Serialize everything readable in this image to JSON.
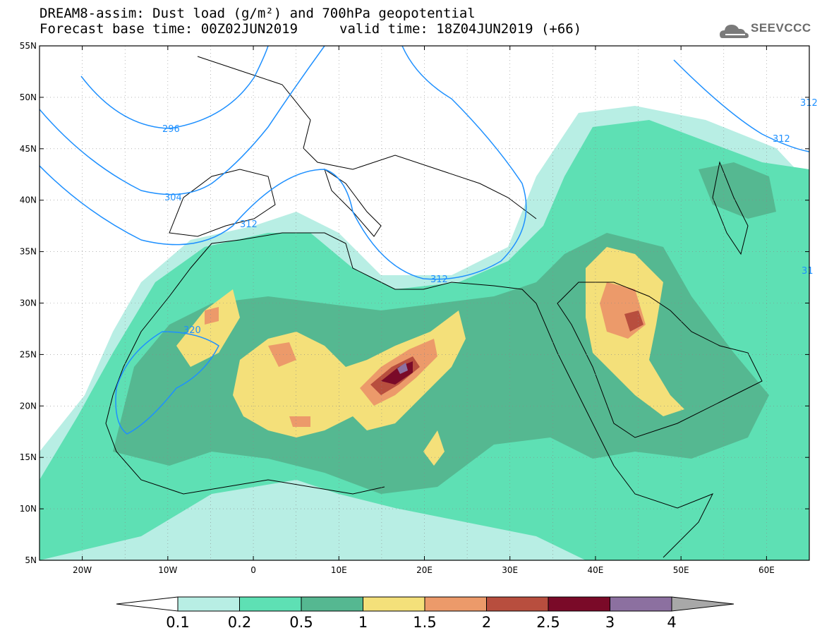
{
  "header": {
    "title_line1": "DREAM8-assim: Dust load (g/m²) and 700hPa geopotential",
    "title_line2": "Forecast base time: 00Z02JUN2019",
    "valid_time": "valid time: 18Z04JUN2019 (+66)",
    "logo_text": "SEEVCCC",
    "logo_icon": "cloud-logo-icon"
  },
  "map": {
    "projection": "lat-lon",
    "lon_range": [
      -25,
      65
    ],
    "lat_range": [
      5,
      55
    ],
    "lat_ticks": [
      "55N",
      "50N",
      "45N",
      "40N",
      "35N",
      "30N",
      "25N",
      "20N",
      "15N",
      "10N",
      "5N"
    ],
    "lon_ticks": [
      "20W",
      "10W",
      "0",
      "10E",
      "20E",
      "30E",
      "40E",
      "50E",
      "60E"
    ],
    "contour_labels": [
      "296",
      "304",
      "312",
      "312",
      "312",
      "312",
      "320",
      "31"
    ],
    "colors": {
      "land_outline": "#000000",
      "contour": "#1e90ff"
    }
  },
  "colorbar": {
    "levels": [
      "0.1",
      "0.2",
      "0.5",
      "1",
      "1.5",
      "2",
      "2.5",
      "3",
      "4"
    ],
    "colors": [
      "#b8eee4",
      "#5ee0b4",
      "#55b891",
      "#f4e07a",
      "#ec9a6a",
      "#b84e3e",
      "#7a0a28",
      "#8c70a0",
      "#a8a8a8"
    ]
  }
}
